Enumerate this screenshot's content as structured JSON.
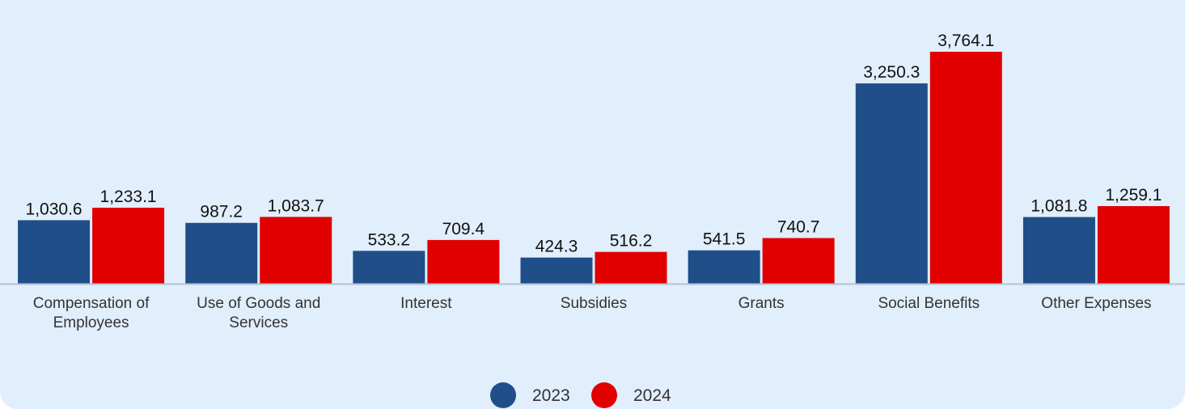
{
  "chart_data": {
    "type": "bar",
    "categories": [
      "Compensation of Employees",
      "Use of Goods and Services",
      "Interest",
      "Subsidies",
      "Grants",
      "Social Benefits",
      "Other Expenses"
    ],
    "category_lines": [
      [
        "Compensation of",
        "Employees"
      ],
      [
        "Use of Goods and",
        "Services"
      ],
      [
        "Interest"
      ],
      [
        "Subsidies"
      ],
      [
        "Grants"
      ],
      [
        "Social Benefits"
      ],
      [
        "Other Expenses"
      ]
    ],
    "series": [
      {
        "name": "2023",
        "color": "#1f4e89",
        "values": [
          1030.6,
          987.2,
          533.2,
          424.3,
          541.5,
          3250.3,
          1081.8
        ],
        "labels": [
          "1,030.6",
          "987.2",
          "533.2",
          "424.3",
          "541.5",
          "3,250.3",
          "1,081.8"
        ]
      },
      {
        "name": "2024",
        "color": "#e00000",
        "values": [
          1233.1,
          1083.7,
          709.4,
          516.2,
          740.7,
          3764.1,
          1259.1
        ],
        "labels": [
          "1,233.1",
          "1,083.7",
          "709.4",
          "516.2",
          "740.7",
          "3,764.1",
          "1,259.1"
        ]
      }
    ],
    "ylim": [
      0,
      4000
    ],
    "grid": false,
    "legend_position": "bottom-center",
    "background_color": "#e1eefb",
    "axis_color": "#b4c1d1"
  }
}
